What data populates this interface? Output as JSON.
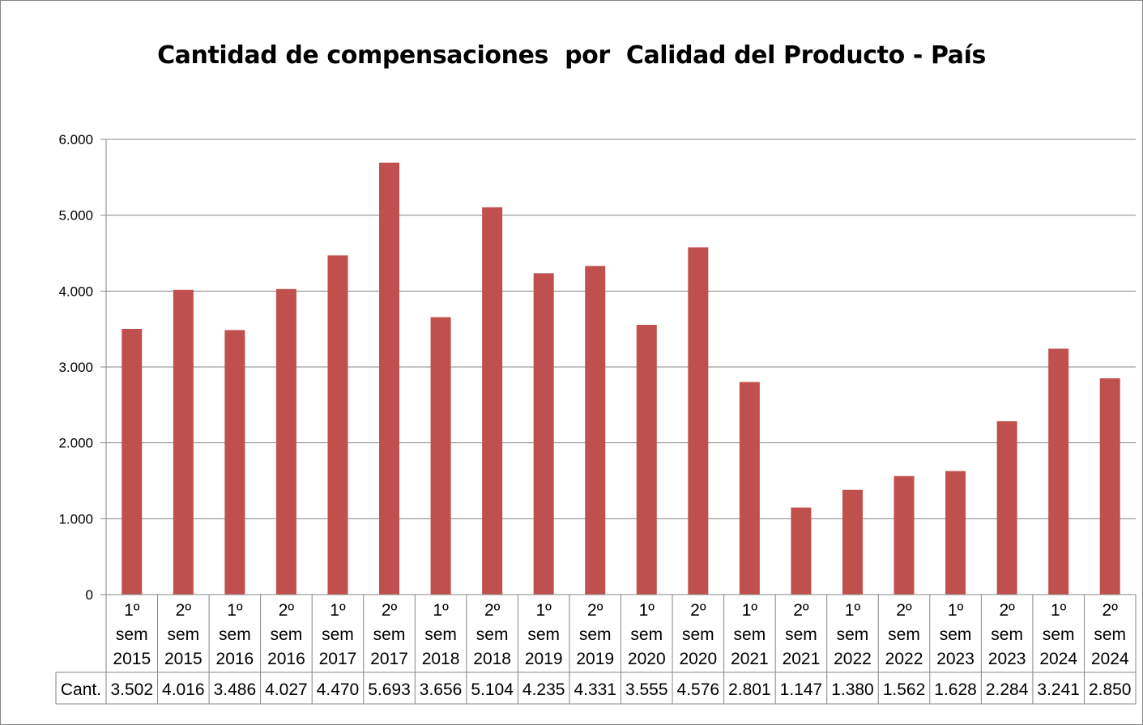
{
  "chart_data": {
    "type": "bar",
    "title": "Cantidad de compensaciones  por  Calidad del Producto - País",
    "xlabel": "",
    "ylabel": "",
    "ylim": [
      0,
      6000
    ],
    "yticks": [
      "0",
      "1.000",
      "2.000",
      "3.000",
      "4.000",
      "5.000",
      "6.000"
    ],
    "grid": true,
    "categories": [
      [
        "1º",
        "sem",
        "2015"
      ],
      [
        "2º",
        "sem",
        "2015"
      ],
      [
        "1º",
        "sem",
        "2016"
      ],
      [
        "2º",
        "sem",
        "2016"
      ],
      [
        "1º",
        "sem",
        "2017"
      ],
      [
        "2º",
        "sem",
        "2017"
      ],
      [
        "1º",
        "sem",
        "2018"
      ],
      [
        "2º",
        "sem",
        "2018"
      ],
      [
        "1º",
        "sem",
        "2019"
      ],
      [
        "2º",
        "sem",
        "2019"
      ],
      [
        "1º",
        "sem",
        "2020"
      ],
      [
        "2º",
        "sem",
        "2020"
      ],
      [
        "1º",
        "sem",
        "2021"
      ],
      [
        "2º",
        "sem",
        "2021"
      ],
      [
        "1º",
        "sem",
        "2022"
      ],
      [
        "2º",
        "sem",
        "2022"
      ],
      [
        "1º",
        "sem",
        "2023"
      ],
      [
        "2º",
        "sem",
        "2023"
      ],
      [
        "1º",
        "sem",
        "2024"
      ],
      [
        "2º",
        "sem",
        "2024"
      ]
    ],
    "series": [
      {
        "name": "Cant.",
        "color": "#c0504d",
        "values": [
          3502,
          4016,
          3486,
          4027,
          4470,
          5693,
          3656,
          5104,
          4235,
          4331,
          3555,
          4576,
          2801,
          1147,
          1380,
          1562,
          1628,
          2284,
          3241,
          2850
        ],
        "labels": [
          "3.502",
          "4.016",
          "3.486",
          "4.027",
          "4.470",
          "5.693",
          "3.656",
          "5.104",
          "4.235",
          "4.331",
          "3.555",
          "4.576",
          "2.801",
          "1.147",
          "1.380",
          "1.562",
          "1.628",
          "2.284",
          "3.241",
          "2.850"
        ]
      }
    ]
  }
}
